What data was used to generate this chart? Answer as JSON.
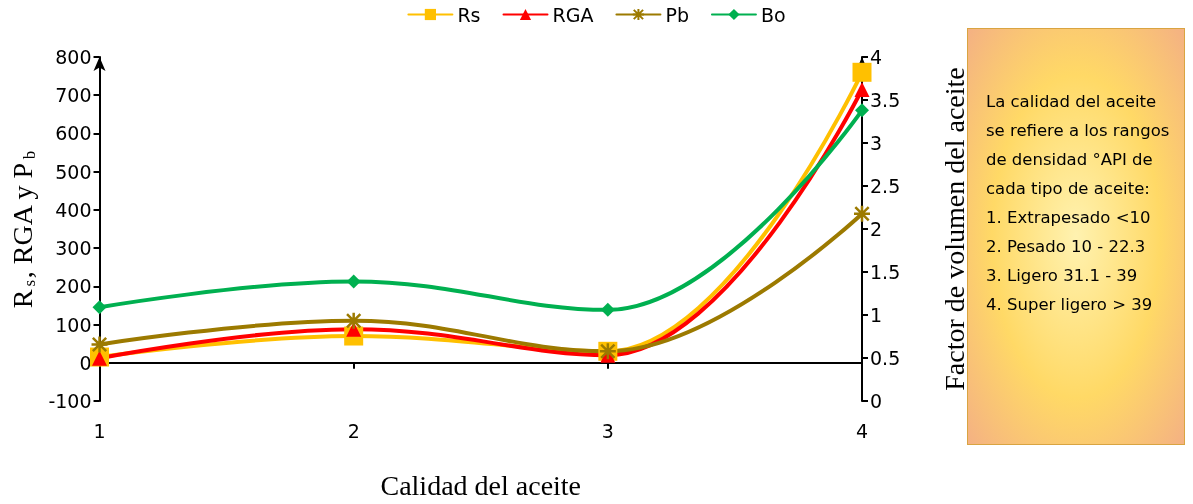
{
  "chart_data": {
    "type": "line",
    "xlabel": "Calidad del aceite",
    "ylabel": "R$_{s}$, RGA y P$_{b}$",
    "y2label": "Factor de volumen del aceite",
    "x": [
      1,
      2,
      3,
      4
    ],
    "xlim": [
      1,
      4
    ],
    "xticks": [
      1,
      2,
      3,
      4
    ],
    "ylim": [
      -100,
      800
    ],
    "yticks": [
      -100,
      0,
      100,
      200,
      300,
      400,
      500,
      600,
      700,
      800
    ],
    "y2lim": [
      0,
      4
    ],
    "y2ticks": [
      0,
      0.5,
      1,
      1.5,
      2,
      2.5,
      3,
      3.5,
      4
    ],
    "series": [
      {
        "name": "Rs",
        "color": "#ffc000",
        "marker": "square",
        "values": [
          15,
          70,
          30,
          760
        ]
      },
      {
        "name": "RGA",
        "color": "#ff0000",
        "marker": "triangle",
        "values": [
          12,
          88,
          20,
          715
        ]
      },
      {
        "name": "Pb",
        "color": "#9c7a00",
        "marker": "cross",
        "values": [
          48,
          110,
          30,
          390
        ]
      },
      {
        "name": "Bo",
        "color": "#00b050",
        "marker": "diamond",
        "axis": "y2",
        "values": [
          1.09,
          1.39,
          1.06,
          3.38
        ]
      }
    ],
    "legend": "top",
    "annotations": [
      "La calidad del aceite se refiere a los rangos de densidad °API de cada tipo de aceite:\n1. Extrapesado <10\n2. Pesado 10 - 22.3\n3. Ligero 31.1 - 39\n4. Super ligero > 39"
    ]
  }
}
